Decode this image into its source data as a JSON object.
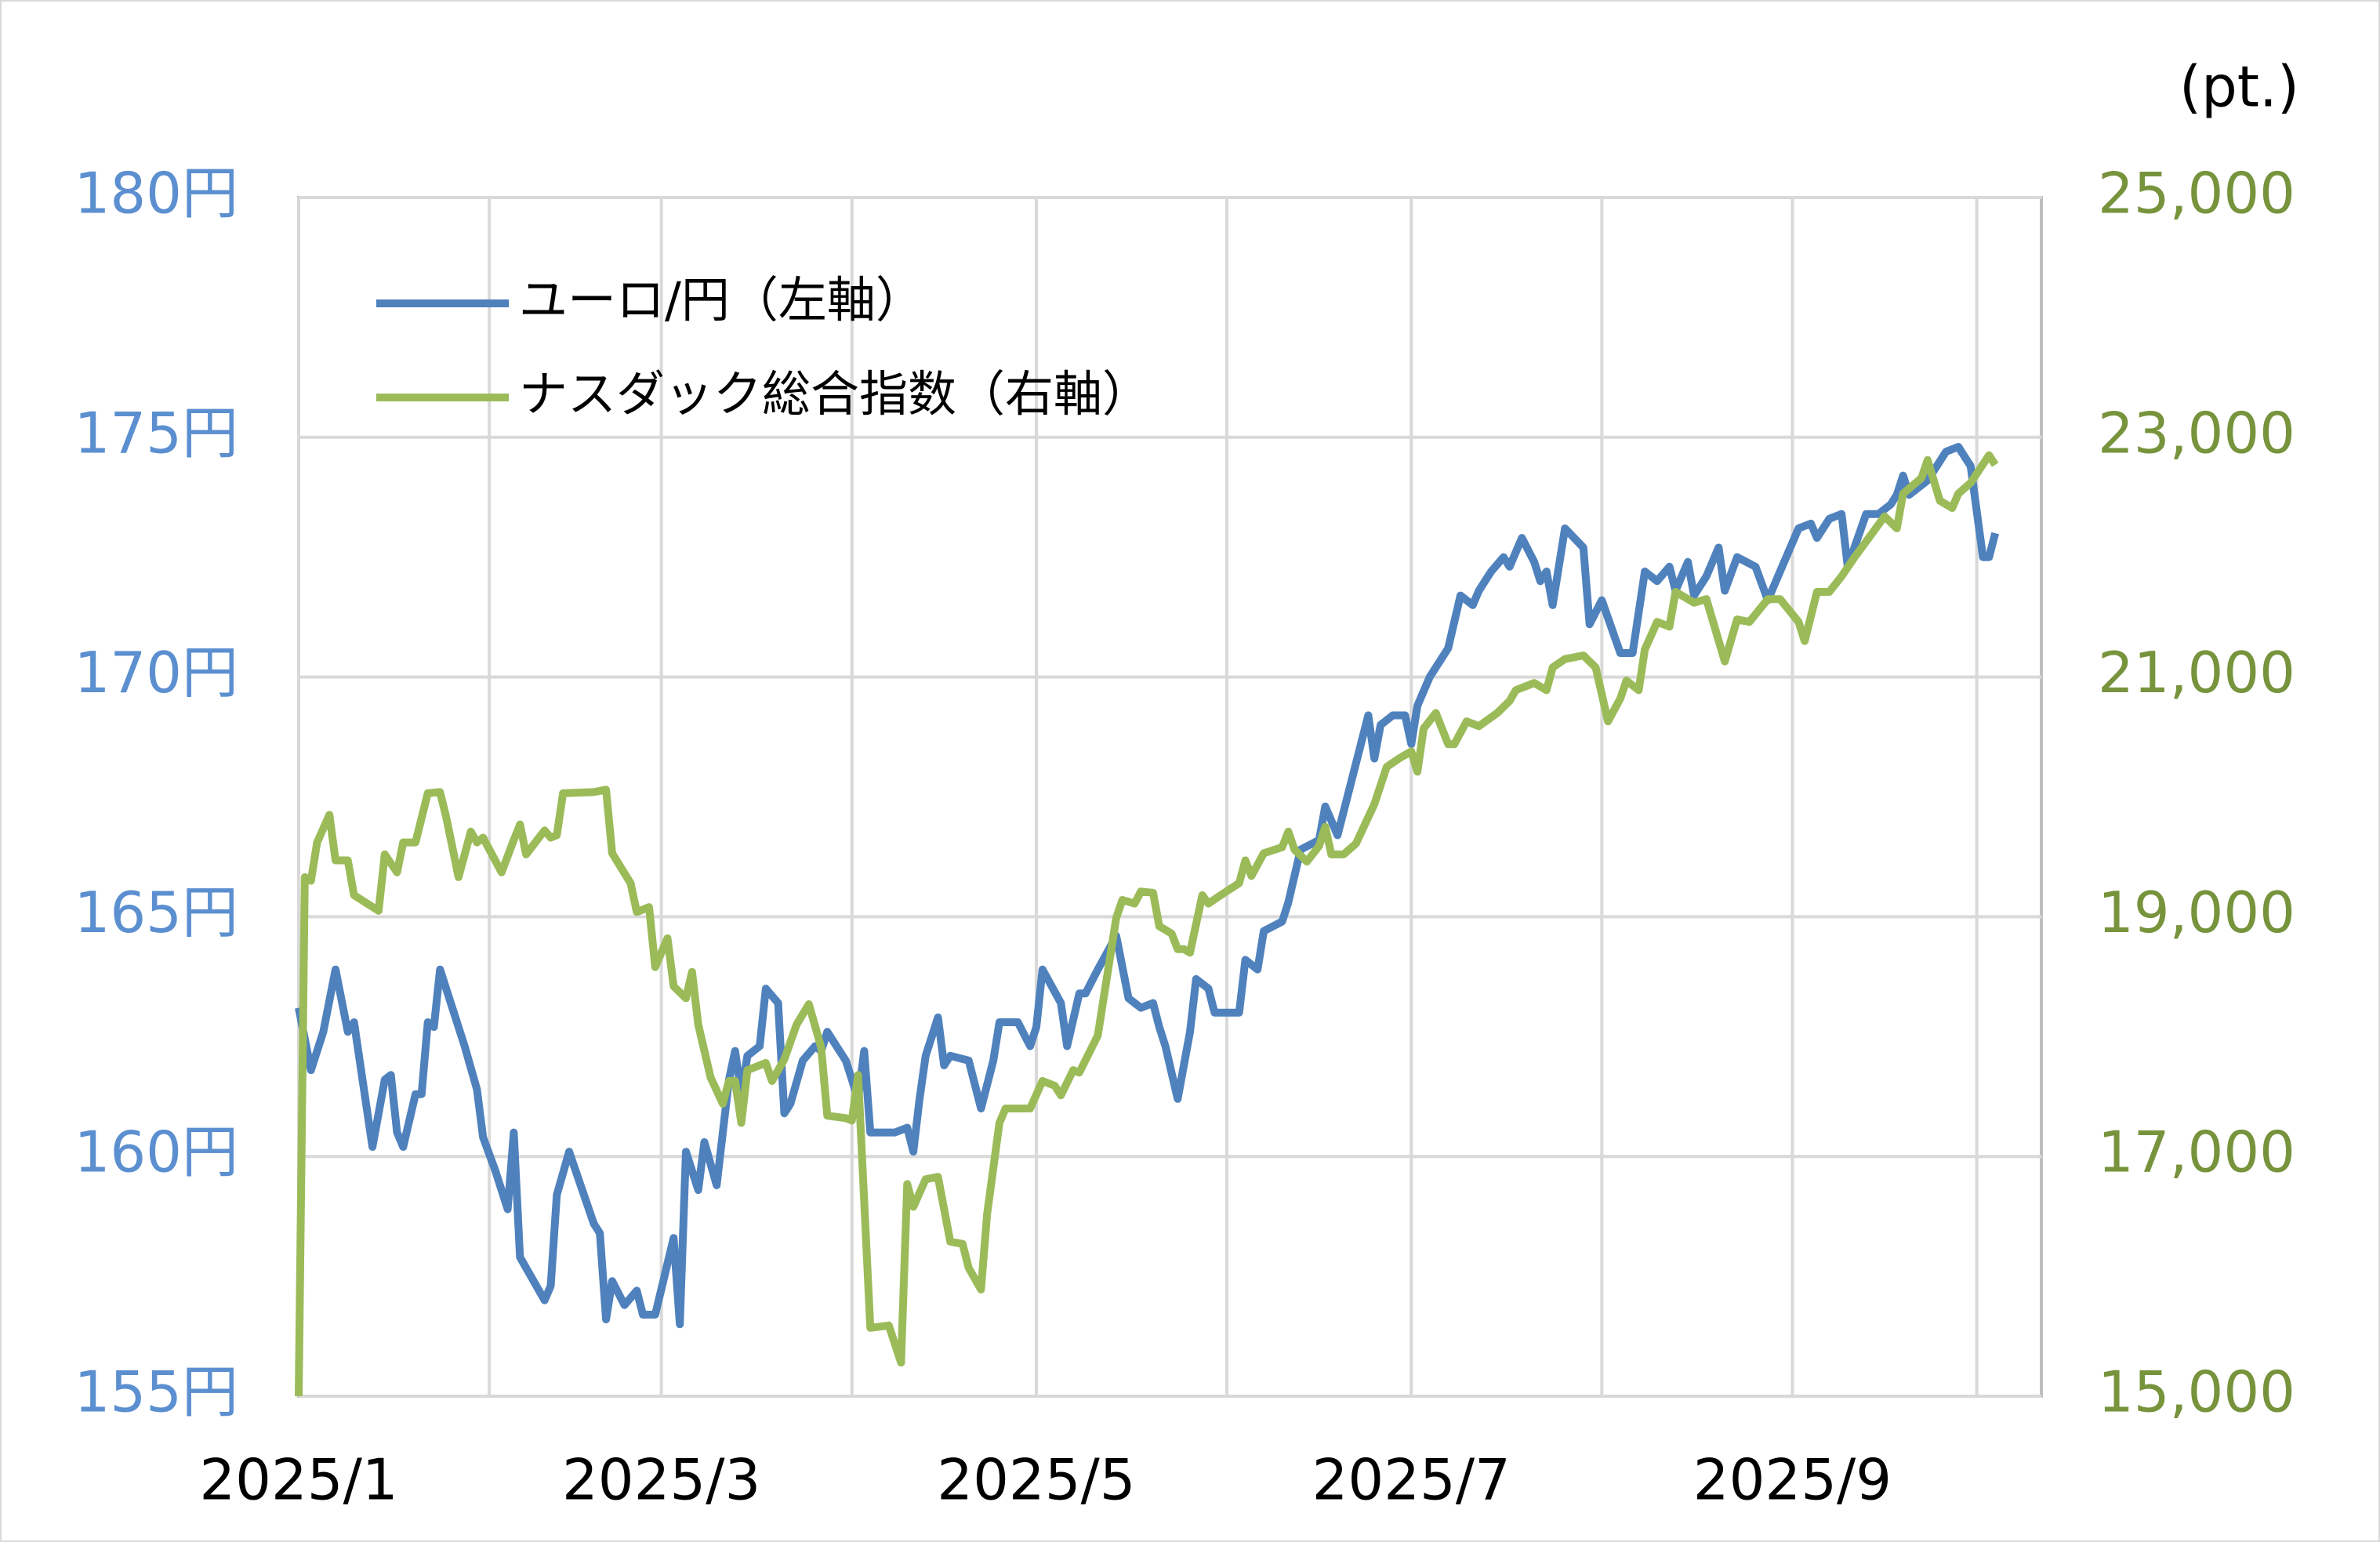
{
  "chart_data": {
    "type": "line",
    "ylabel_right": "(pt.)",
    "xlim": [
      0,
      283.5
    ],
    "xticks": [
      {
        "value": 0,
        "label": "2025/1"
      },
      {
        "value": 59,
        "label": "2025/3"
      },
      {
        "value": 120,
        "label": "2025/5"
      },
      {
        "value": 181,
        "label": "2025/7"
      },
      {
        "value": 243,
        "label": "2025/9"
      }
    ],
    "xminor": [
      31,
      90,
      151,
      212,
      273
    ],
    "ylim": [
      155,
      180
    ],
    "yticks": [
      {
        "value": 155,
        "label": "155円"
      },
      {
        "value": 160,
        "label": "160円"
      },
      {
        "value": 165,
        "label": "165円"
      },
      {
        "value": 170,
        "label": "170円"
      },
      {
        "value": 175,
        "label": "175円"
      },
      {
        "value": 180,
        "label": "180円"
      }
    ],
    "y2lim": [
      15000,
      25000
    ],
    "y2ticks": [
      {
        "value": 15000,
        "label": "15,000"
      },
      {
        "value": 17000,
        "label": "17,000"
      },
      {
        "value": 19000,
        "label": "19,000"
      },
      {
        "value": 21000,
        "label": "21,000"
      },
      {
        "value": 23000,
        "label": "23,000"
      },
      {
        "value": 25000,
        "label": "25,000"
      }
    ],
    "grid": true,
    "legend": "upper left",
    "series": [
      {
        "name": "ユーロ/円（左軸）",
        "color": "#4f81bd",
        "axis": "y",
        "x": [
          0,
          2,
          4,
          6,
          8,
          9,
          12,
          14,
          15,
          16,
          17,
          19,
          20,
          21,
          22,
          23,
          27,
          29,
          30,
          32,
          34,
          35,
          36,
          40,
          41,
          42,
          44,
          48,
          49,
          50,
          51,
          53,
          55,
          56,
          58,
          61,
          62,
          63,
          65,
          66,
          68,
          70,
          71,
          72,
          73,
          75,
          76,
          78,
          79,
          80,
          82,
          84,
          85,
          86,
          89,
          91,
          92,
          93,
          97,
          99,
          100,
          101,
          102,
          104,
          105,
          106,
          109,
          111,
          113,
          114,
          117,
          119,
          120,
          121,
          124,
          125,
          127,
          128,
          130,
          133,
          135,
          137,
          139,
          140,
          141,
          143,
          145,
          146,
          148,
          149,
          153,
          154,
          156,
          157,
          160,
          161,
          163,
          166,
          167,
          169,
          171,
          174,
          175,
          176,
          178,
          180,
          181,
          182,
          184,
          187,
          189,
          191,
          192,
          194,
          196,
          197,
          199,
          201,
          202,
          203,
          204,
          206,
          209,
          210,
          212,
          215,
          217,
          219,
          221,
          223,
          224,
          226,
          227,
          229,
          231,
          232,
          234,
          237,
          239,
          241,
          244,
          246,
          247,
          249,
          251,
          252,
          255,
          257,
          259,
          260,
          261,
          262,
          265,
          268,
          270,
          272,
          274,
          275,
          276
        ],
        "values": [
          163.1,
          161.8,
          162.6,
          163.9,
          162.6,
          162.8,
          160.2,
          161.6,
          161.7,
          160.5,
          160.2,
          161.3,
          161.3,
          162.8,
          162.7,
          163.9,
          162.3,
          161.4,
          160.4,
          159.7,
          158.9,
          160.5,
          157.9,
          157.0,
          157.3,
          159.2,
          160.1,
          158.6,
          158.4,
          156.6,
          157.4,
          156.9,
          157.2,
          156.7,
          156.7,
          158.3,
          156.5,
          160.1,
          159.3,
          160.3,
          159.4,
          161.6,
          162.2,
          161.3,
          162.1,
          162.3,
          163.5,
          163.2,
          160.9,
          161.1,
          162.0,
          162.3,
          162.2,
          162.6,
          162.0,
          161.2,
          162.2,
          160.5,
          160.5,
          160.6,
          160.1,
          161.2,
          162.1,
          162.9,
          161.9,
          162.1,
          162.0,
          161.0,
          162.0,
          162.8,
          162.8,
          162.3,
          162.7,
          163.9,
          163.2,
          162.3,
          163.4,
          163.4,
          163.9,
          164.6,
          163.3,
          163.1,
          163.2,
          162.7,
          162.3,
          161.2,
          162.6,
          163.7,
          163.5,
          163.0,
          163.0,
          164.1,
          163.9,
          164.7,
          164.9,
          165.3,
          166.4,
          166.6,
          167.3,
          166.7,
          167.7,
          169.2,
          168.3,
          169.0,
          169.2,
          169.2,
          168.6,
          169.4,
          170.0,
          170.6,
          171.7,
          171.5,
          171.8,
          172.2,
          172.5,
          172.3,
          172.9,
          172.4,
          172.0,
          172.2,
          171.5,
          173.1,
          172.7,
          171.1,
          171.6,
          170.5,
          170.5,
          172.2,
          172.0,
          172.3,
          171.8,
          172.4,
          171.7,
          172.1,
          172.7,
          171.8,
          172.5,
          172.3,
          171.6,
          172.2,
          173.1,
          173.2,
          172.9,
          173.3,
          173.4,
          172.3,
          173.4,
          173.4,
          173.6,
          173.8,
          174.2,
          173.8,
          174.1,
          174.7,
          174.8,
          174.4,
          172.5,
          172.5,
          173.0
        ]
      },
      {
        "name": "ナスダック総合指数（右軸）",
        "color": "#9bbb59",
        "axis": "y2",
        "x": [
          0,
          1,
          2,
          3,
          5,
          6,
          8,
          9,
          13,
          14,
          16,
          17,
          19,
          21,
          23,
          24,
          26,
          28,
          29,
          30,
          33,
          35,
          36,
          37,
          40,
          41,
          42,
          43,
          48,
          50,
          51,
          54,
          55,
          57,
          58,
          60,
          61,
          63,
          64,
          65,
          67,
          69,
          70,
          71,
          72,
          73,
          76,
          77,
          79,
          81,
          83,
          85,
          86,
          89,
          90,
          91,
          93,
          96,
          98,
          99,
          100,
          102,
          104,
          106,
          108,
          109,
          111,
          112,
          114,
          115,
          117,
          119,
          121,
          123,
          124,
          126,
          127,
          130,
          133,
          134,
          136,
          137,
          139,
          140,
          142,
          143,
          144,
          145,
          147,
          148,
          150,
          153,
          154,
          155,
          157,
          160,
          161,
          162,
          164,
          166,
          167,
          168,
          170,
          172,
          175,
          177,
          179,
          181,
          182,
          183,
          185,
          187,
          188,
          190,
          192,
          195,
          197,
          198,
          201,
          203,
          204,
          206,
          209,
          211,
          213,
          215,
          216,
          218,
          219,
          221,
          223,
          224,
          226,
          227,
          229,
          232,
          234,
          236,
          239,
          241,
          244,
          245,
          247,
          249,
          251,
          253,
          255,
          258,
          260,
          261,
          264,
          265,
          267,
          269,
          270,
          272,
          275,
          276
        ],
        "values": [
          15000,
          19330,
          19300,
          19620,
          19850,
          19470,
          19470,
          19180,
          19050,
          19520,
          19370,
          19620,
          19620,
          20030,
          20040,
          19830,
          19330,
          19710,
          19620,
          19660,
          19370,
          19640,
          19770,
          19520,
          19720,
          19660,
          19680,
          20030,
          20040,
          20060,
          19530,
          19280,
          19040,
          19080,
          18580,
          18820,
          18420,
          18320,
          18540,
          18100,
          17660,
          17440,
          17630,
          17630,
          17280,
          17720,
          17780,
          17630,
          17810,
          18100,
          18270,
          17910,
          17340,
          17320,
          17300,
          17680,
          15570,
          15590,
          15280,
          16770,
          16580,
          16810,
          16830,
          16290,
          16270,
          16070,
          15890,
          16520,
          17280,
          17400,
          17400,
          17400,
          17630,
          17590,
          17510,
          17720,
          17700,
          18010,
          18990,
          19140,
          19110,
          19210,
          19200,
          18920,
          18860,
          18730,
          18730,
          18700,
          19180,
          19110,
          19180,
          19280,
          19470,
          19340,
          19530,
          19580,
          19710,
          19560,
          19460,
          19590,
          19750,
          19520,
          19520,
          19610,
          19940,
          20250,
          20320,
          20380,
          20210,
          20570,
          20700,
          20440,
          20440,
          20630,
          20590,
          20700,
          20800,
          20890,
          20950,
          20890,
          21080,
          21150,
          21180,
          21080,
          20630,
          20820,
          20970,
          20890,
          21230,
          21460,
          21420,
          21710,
          21650,
          21620,
          21650,
          21130,
          21480,
          21460,
          21650,
          21650,
          21460,
          21300,
          21710,
          21710,
          21840,
          21990,
          22130,
          22340,
          22240,
          22530,
          22660,
          22810,
          22470,
          22410,
          22530,
          22620,
          22850,
          22770
        ]
      }
    ]
  }
}
